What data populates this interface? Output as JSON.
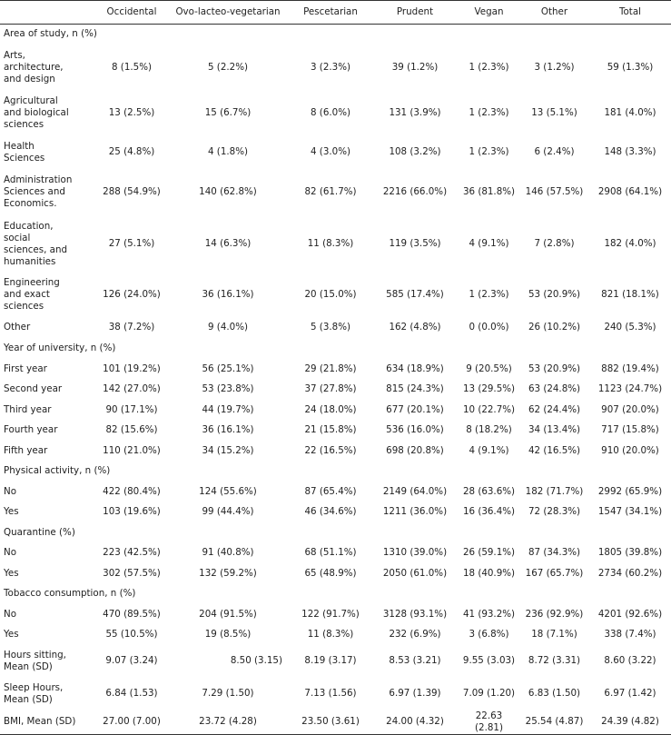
{
  "header": [
    "",
    "Occidental",
    "Ovo-lacteo-vegetarian",
    "Pescetarian",
    "Prudent",
    "Vegan",
    "Other",
    "Total"
  ],
  "rows": [
    {
      "type": "section",
      "label": "Area of study, n (%)",
      "h": 22
    },
    {
      "type": "data",
      "label": "Arts,\narchitecture,\nand design",
      "values": [
        "8 (1.5%)",
        "5 (2.2%)",
        "3 (2.3%)",
        "39 (1.2%)",
        "1 (2.3%)",
        "3 (1.2%)",
        "59 (1.3%)"
      ],
      "h": 52
    },
    {
      "type": "data",
      "label": "Agricultural\nand biological\nsciences",
      "values": [
        "13 (2.5%)",
        "15 (6.7%)",
        "8 (6.0%)",
        "131 (3.9%)",
        "1 (2.3%)",
        "13 (5.1%)",
        "181 (4.0%)"
      ],
      "h": 48
    },
    {
      "type": "data",
      "label": "Health\nSciences",
      "values": [
        "25 (4.8%)",
        "4 (1.8%)",
        "4 (3.0%)",
        "108 (3.2%)",
        "1 (2.3%)",
        "6 (2.4%)",
        "148 (3.3%)"
      ],
      "h": 38
    },
    {
      "type": "data",
      "label": "Administration\nSciences and\nEconomics.",
      "values": [
        "288 (54.9%)",
        "140 (62.8%)",
        "82 (61.7%)",
        "2216 (66.0%)",
        "36 (81.8%)",
        "146 (57.5%)",
        "2908 (64.1%)"
      ],
      "h": 50
    },
    {
      "type": "data",
      "label": "Education,\nsocial\nsciences, and\nhumanities",
      "values": [
        "27 (5.1%)",
        "14 (6.3%)",
        "11 (8.3%)",
        "119 (3.5%)",
        "4 (9.1%)",
        "7 (2.8%)",
        "182 (4.0%)"
      ],
      "h": 64
    },
    {
      "type": "data",
      "label": "Engineering\nand exact\nsciences",
      "values": [
        "126 (24.0%)",
        "36 (16.1%)",
        "20 (15.0%)",
        "585 (17.4%)",
        "1 (2.3%)",
        "53 (20.9%)",
        "821 (18.1%)"
      ],
      "h": 48
    },
    {
      "type": "data",
      "label": "Other",
      "values": [
        "38 (7.2%)",
        "9 (4.0%)",
        "5 (3.8%)",
        "162 (4.8%)",
        "0 (0.0%)",
        "26 (10.2%)",
        "240 (5.3%)"
      ],
      "h": 24
    },
    {
      "type": "section",
      "label": "Year of university, n (%)",
      "h": 22
    },
    {
      "type": "data",
      "label": "First year",
      "values": [
        "101 (19.2%)",
        "56 (25.1%)",
        "29 (21.8%)",
        "634 (18.9%)",
        "9 (20.5%)",
        "53 (20.9%)",
        "882 (19.4%)"
      ],
      "h": 23
    },
    {
      "type": "data",
      "label": "Second year",
      "values": [
        "142 (27.0%)",
        "53 (23.8%)",
        "37 (27.8%)",
        "815 (24.3%)",
        "13 (29.5%)",
        "63 (24.8%)",
        "1123 (24.7%)"
      ],
      "h": 22
    },
    {
      "type": "data",
      "label": "Third year",
      "values": [
        "90 (17.1%)",
        "44 (19.7%)",
        "24 (18.0%)",
        "677 (20.1%)",
        "10 (22.7%)",
        "62 (24.4%)",
        "907 (20.0%)"
      ],
      "h": 23
    },
    {
      "type": "data",
      "label": "Fourth year",
      "values": [
        "82 (15.6%)",
        "36 (16.1%)",
        "21 (15.8%)",
        "536 (16.0%)",
        "8 (18.2%)",
        "34 (13.4%)",
        "717 (15.8%)"
      ],
      "h": 22
    },
    {
      "type": "data",
      "label": "Fifth year",
      "values": [
        "110 (21.0%)",
        "34 (15.2%)",
        "22 (16.5%)",
        "698 (20.8%)",
        "4 (9.1%)",
        "42 (16.5%)",
        "910 (20.0%)"
      ],
      "h": 23
    },
    {
      "type": "section",
      "label": "Physical activity, n (%)",
      "h": 22
    },
    {
      "type": "data",
      "label": "No",
      "values": [
        "422 (80.4%)",
        "124 (55.6%)",
        "87 (65.4%)",
        "2149 (64.0%)",
        "28 (63.6%)",
        "182 (71.7%)",
        "2992 (65.9%)"
      ],
      "h": 23
    },
    {
      "type": "data",
      "label": "Yes",
      "values": [
        "103 (19.6%)",
        "99 (44.4%)",
        "46 (34.6%)",
        "1211 (36.0%)",
        "16 (36.4%)",
        "72 (28.3%)",
        "1547 (34.1%)"
      ],
      "h": 22
    },
    {
      "type": "section",
      "label": "Quarantine (%)",
      "h": 23
    },
    {
      "type": "data",
      "label": "No",
      "values": [
        "223 (42.5%)",
        "91 (40.8%)",
        "68 (51.1%)",
        "1310 (39.0%)",
        "26 (59.1%)",
        "87 (34.3%)",
        "1805 (39.8%)"
      ],
      "h": 22
    },
    {
      "type": "data",
      "label": "Yes",
      "values": [
        "302 (57.5%)",
        "132 (59.2%)",
        "65 (48.9%)",
        "2050 (61.0%)",
        "18 (40.9%)",
        "167 (65.7%)",
        "2734 (60.2%)"
      ],
      "h": 23
    },
    {
      "type": "section",
      "label": "Tobacco consumption, n (%)",
      "h": 22
    },
    {
      "type": "data",
      "label": "No",
      "values": [
        "470 (89.5%)",
        "204 (91.5%)",
        "122 (91.7%)",
        "3128 (93.1%)",
        "41 (93.2%)",
        "236 (92.9%)",
        "4201 (92.6%)"
      ],
      "h": 23
    },
    {
      "type": "data",
      "label": "Yes",
      "values": [
        "55 (10.5%)",
        "19 (8.5%)",
        "11 (8.3%)",
        "232 (6.9%)",
        "3 (6.8%)",
        "18 (7.1%)",
        "338 (7.4%)"
      ],
      "h": 22
    },
    {
      "type": "data",
      "label": "Hours sitting,\nMean (SD)",
      "values": [
        "9.07 (3.24)",
        "8.50 (3.15)",
        "8.19 (3.17)",
        "8.53 (3.21)",
        "9.55 (3.03)",
        "8.72 (3.31)",
        "8.60 (3.22)"
      ],
      "h": 36,
      "right": [
        1
      ]
    },
    {
      "type": "data",
      "label": "Sleep Hours,\nMean (SD)",
      "values": [
        "6.84 (1.53)",
        "7.29 (1.50)",
        "7.13 (1.56)",
        "6.97 (1.39)",
        "7.09 (1.20)",
        "6.83 (1.50)",
        "6.97 (1.42)"
      ],
      "h": 36
    },
    {
      "type": "data",
      "label": "BMI, Mean (SD)",
      "values": [
        "27.00 (7.00)",
        "23.72 (4.28)",
        "23.50 (3.61)",
        "24.00 (4.32)",
        "22.63 (2.81)",
        "25.54 (4.87)",
        "24.39 (4.82)"
      ],
      "h": 24
    }
  ]
}
